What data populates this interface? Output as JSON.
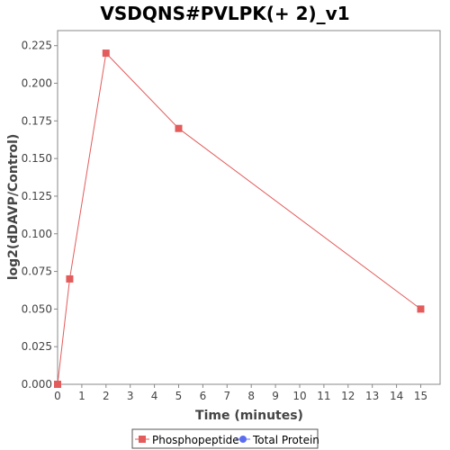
{
  "chart_data": {
    "type": "line",
    "title": "VSDQNS#PVLPK(+ 2)_v1",
    "xlabel": "Time (minutes)",
    "ylabel": "log2(dDAVP/Control)",
    "xlim": [
      0,
      15.8
    ],
    "ylim": [
      0,
      0.235
    ],
    "x_ticks": [
      0,
      1,
      2,
      3,
      4,
      5,
      6,
      7,
      8,
      9,
      10,
      11,
      12,
      13,
      14,
      15
    ],
    "y_ticks": [
      0.0,
      0.025,
      0.05,
      0.075,
      0.1,
      0.125,
      0.15,
      0.175,
      0.2,
      0.225
    ],
    "y_tick_labels": [
      "0.000",
      "0.025",
      "0.050",
      "0.075",
      "0.100",
      "0.125",
      "0.150",
      "0.175",
      "0.200",
      "0.225"
    ],
    "grid": false,
    "legend_position": "bottom-center",
    "series": [
      {
        "name": "Phosphopeptide",
        "color": "#e35b5b",
        "marker": "square",
        "x": [
          0,
          0.5,
          2,
          5,
          15
        ],
        "y": [
          0.0,
          0.07,
          0.22,
          0.17,
          0.05
        ]
      },
      {
        "name": "Total Protein",
        "color": "#5b6cf0",
        "marker": "circle",
        "x": [],
        "y": []
      }
    ]
  }
}
